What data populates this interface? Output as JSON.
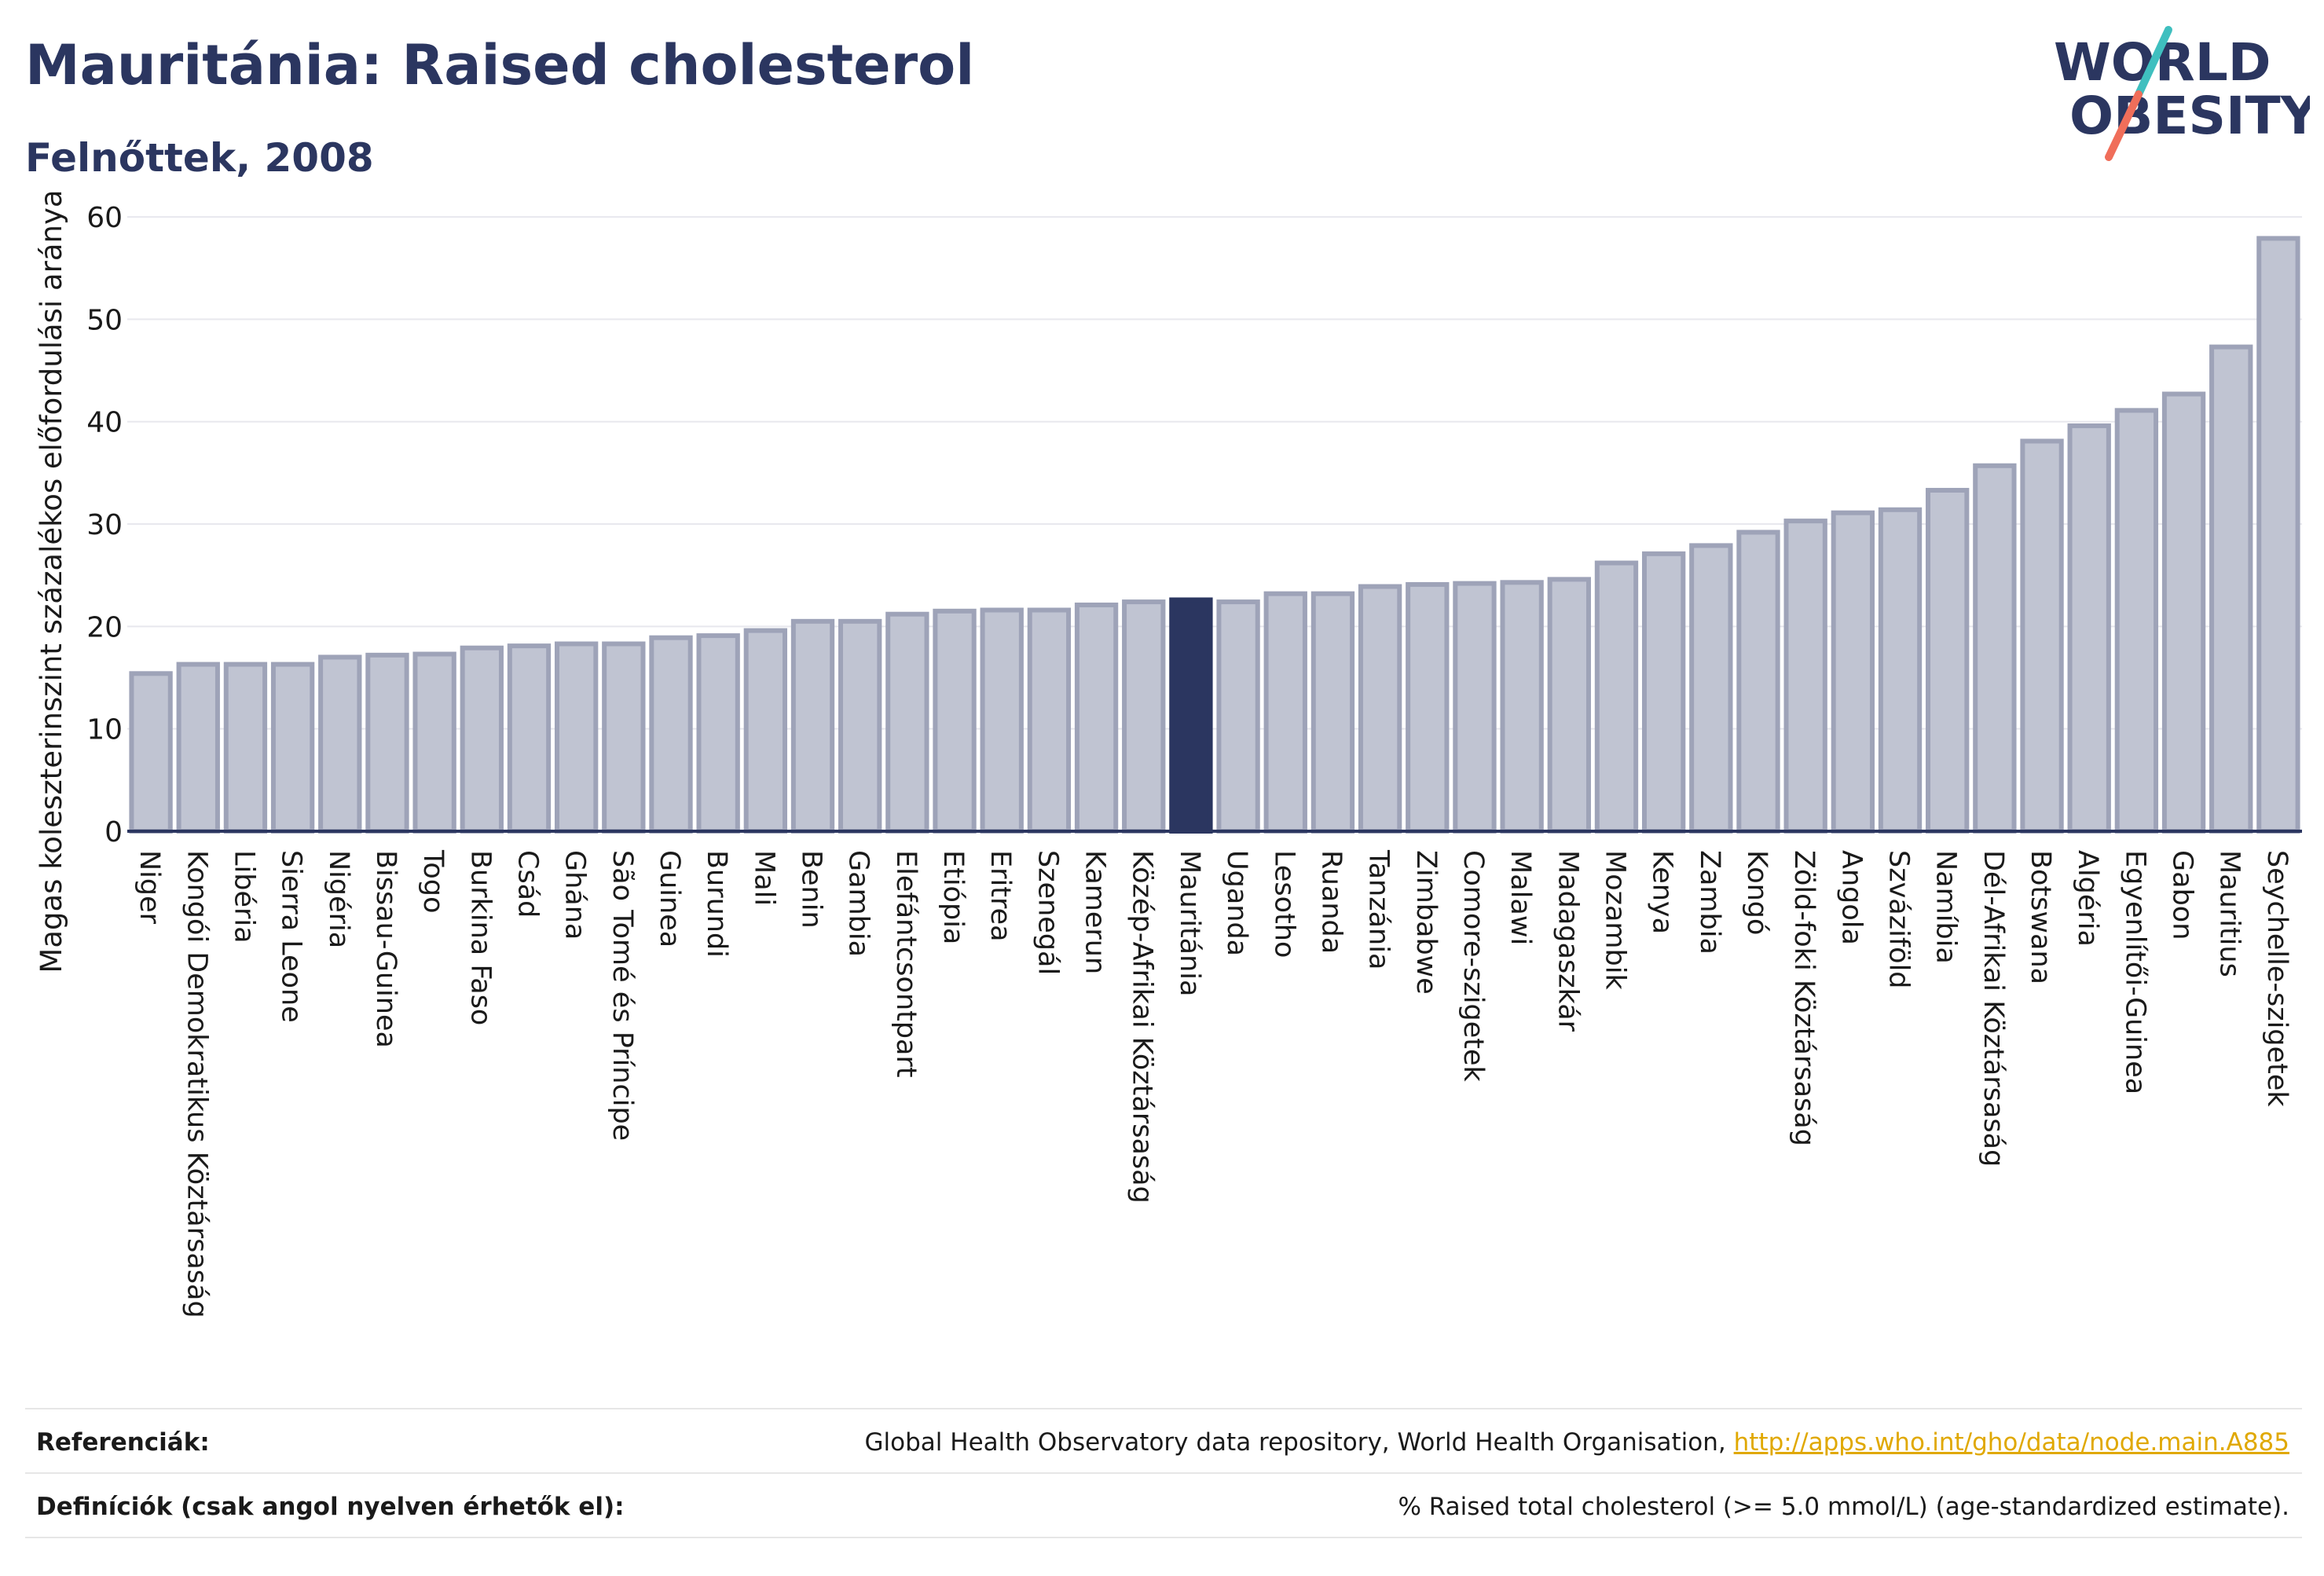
{
  "header": {
    "title": "Mauritánia: Raised cholesterol",
    "subtitle": "Felnőttek, 2008"
  },
  "logo": {
    "line1": "WORLD",
    "line2": "OBESITY",
    "colors": {
      "text": "#2b3660",
      "slash_teal": "#3fbfbf",
      "slash_coral": "#f06e5a"
    }
  },
  "chart_data": {
    "type": "bar",
    "ylabel": "Magas koleszterinszint százalékos előfordulási aránya",
    "xlabel": "",
    "ylim": [
      0,
      62
    ],
    "yticks": [
      0,
      10,
      20,
      30,
      40,
      50,
      60
    ],
    "grid": true,
    "highlight": "Mauritánia",
    "colors": {
      "bar": "#c0c4d2",
      "bar_edge": "#9ea3b8",
      "highlight": "#2b3660",
      "axis": "#2b3660",
      "grid": "#e8e8ee"
    },
    "categories": [
      "Niger",
      "Kongói Demokratikus Köztársaság",
      "Libéria",
      "Sierra Leone",
      "Nigéria",
      "Bissau-Guinea",
      "Togo",
      "Burkina Faso",
      "Csád",
      "Ghána",
      "São Tomé és Príncipe",
      "Guinea",
      "Burundi",
      "Mali",
      "Benin",
      "Gambia",
      "Elefántcsontpart",
      "Etiópia",
      "Eritrea",
      "Szenegál",
      "Kamerun",
      "Közép-Afrikai Köztársaság",
      "Mauritánia",
      "Uganda",
      "Lesotho",
      "Ruanda",
      "Tanzánia",
      "Zimbabwe",
      "Comore-szigetek",
      "Malawi",
      "Madagaszkár",
      "Mozambik",
      "Kenya",
      "Zambia",
      "Kongó",
      "Zöld-foki Köztársaság",
      "Angola",
      "Szváziföld",
      "Namíbia",
      "Dél-Afrikai Köztársaság",
      "Botswana",
      "Algéria",
      "Egyenlítői-Guinea",
      "Gabon",
      "Mauritius",
      "Seychelle-szigetek"
    ],
    "values": [
      15.4,
      16.3,
      16.3,
      16.3,
      17.0,
      17.2,
      17.3,
      17.9,
      18.1,
      18.3,
      18.3,
      18.9,
      19.1,
      19.6,
      20.5,
      20.5,
      21.2,
      21.5,
      21.6,
      21.6,
      22.1,
      22.4,
      22.6,
      22.4,
      23.2,
      23.2,
      23.9,
      24.1,
      24.2,
      24.3,
      24.6,
      26.2,
      27.1,
      27.9,
      29.2,
      30.3,
      31.1,
      31.4,
      33.3,
      35.7,
      38.1,
      39.6,
      41.1,
      42.7,
      47.3,
      57.9
    ]
  },
  "footer": {
    "references_label": "Referenciák:",
    "references_text": "Global Health Observatory data repository, World Health Organisation, ",
    "references_link": "http://apps.who.int/gho/data/node.main.A885",
    "definitions_label": "Definíciók (csak angol nyelven érhetők el):",
    "definitions_text": "% Raised total cholesterol (>= 5.0 mmol/L) (age-standardized estimate)."
  }
}
